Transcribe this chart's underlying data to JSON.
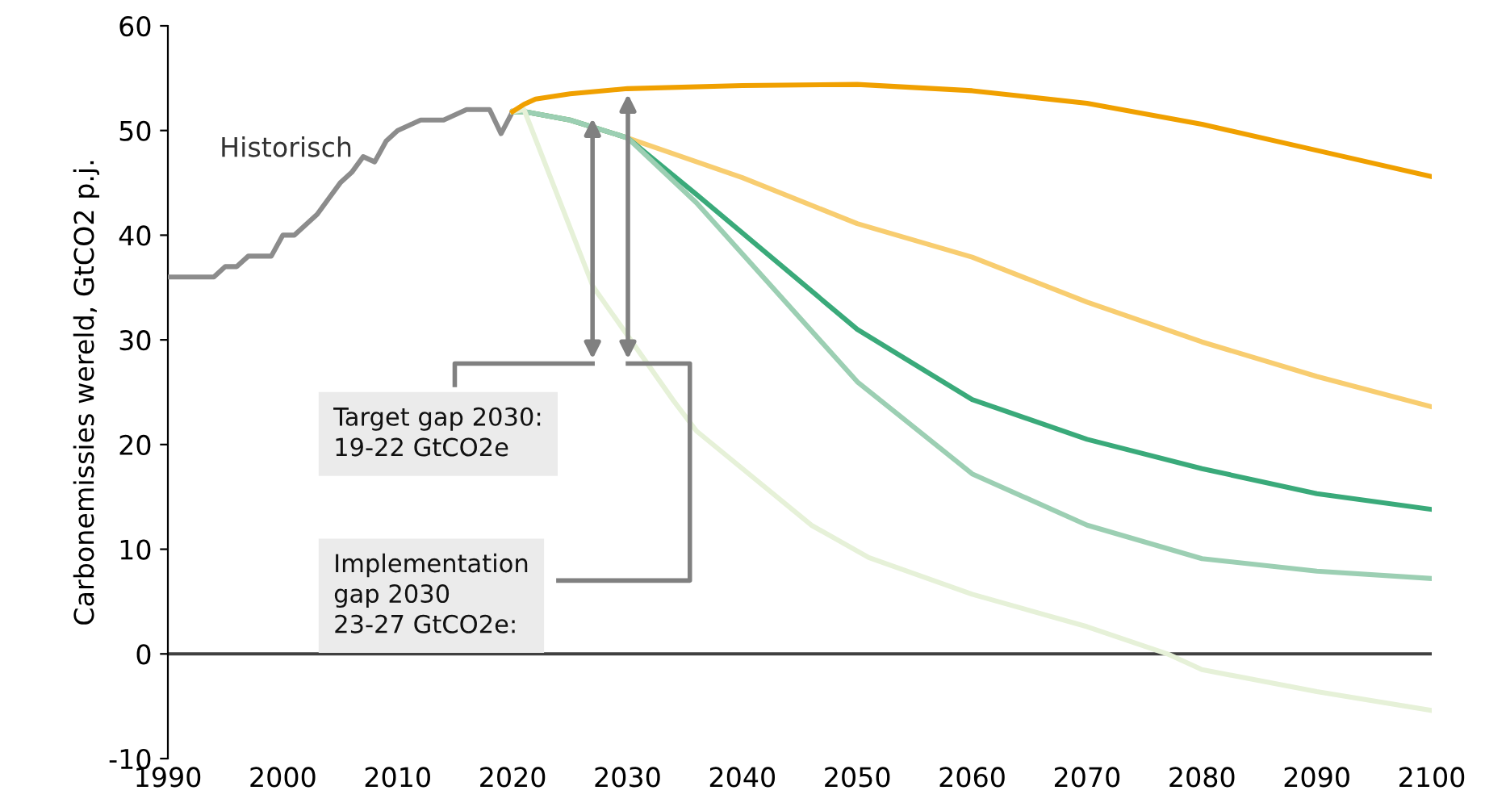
{
  "chart_data": {
    "type": "line",
    "ylabel": "Carbonemissies wereld, GtCO2 p.j.",
    "xlim": [
      1990,
      2100
    ],
    "xticks": [
      1990,
      2000,
      2010,
      2020,
      2030,
      2040,
      2050,
      2060,
      2070,
      2080,
      2090,
      2100
    ],
    "ylim": [
      -10,
      60
    ],
    "yticks": [
      -10,
      0,
      10,
      20,
      30,
      40,
      50,
      60
    ],
    "grid": false,
    "legend": false,
    "marker": "none",
    "line_style": "solid",
    "ref_lines": [
      {
        "axis": "y",
        "value": 0,
        "color": "#404040"
      }
    ],
    "annotations": [
      "Target gap 2030:\n19-22 GtCO2e",
      "Implementation\ngap 2030\n23-27 GtCO2e:"
    ],
    "series": [
      {
        "name": "Historisch",
        "color": "#8c8c8c",
        "x": [
          1990,
          1994,
          1995,
          1996,
          1997,
          1999,
          2000,
          2001,
          2002,
          2003,
          2004,
          2005,
          2006,
          2007,
          2008,
          2009,
          2010,
          2011,
          2012,
          2013,
          2014,
          2015,
          2016,
          2017,
          2018,
          2019,
          2020
        ],
        "values": [
          36,
          36,
          37,
          37,
          38,
          38,
          40,
          40,
          41,
          42,
          43.5,
          45,
          46,
          47.5,
          47,
          49,
          50,
          50.5,
          51,
          51,
          51,
          51.5,
          52,
          52,
          52,
          49.7,
          51.8
        ]
      },
      {
        "color": "#f0a000",
        "x": [
          2020,
          2021,
          2022,
          2025,
          2030,
          2040,
          2050,
          2060,
          2070,
          2080,
          2090,
          2100
        ],
        "values": [
          51.8,
          52.5,
          53,
          53.5,
          54,
          54.3,
          54.4,
          53.8,
          52.6,
          50.6,
          48.1,
          45.6
        ]
      },
      {
        "color": "#f8cd70",
        "x": [
          2020,
          2021,
          2025,
          2030,
          2040,
          2050,
          2060,
          2070,
          2080,
          2090,
          2100
        ],
        "values": [
          51.8,
          51.8,
          51,
          49.3,
          45.5,
          41.1,
          37.9,
          33.6,
          29.8,
          26.5,
          23.6
        ]
      },
      {
        "color": "#3aaa7a",
        "x": [
          2020,
          2021,
          2025,
          2030,
          2036,
          2050,
          2060,
          2070,
          2080,
          2090,
          2100
        ],
        "values": [
          51.8,
          51.8,
          51,
          49.3,
          43.9,
          31,
          24.3,
          20.5,
          17.7,
          15.3,
          13.8
        ]
      },
      {
        "color": "#9ccfb3",
        "x": [
          2020,
          2021,
          2025,
          2030,
          2036,
          2050,
          2060,
          2070,
          2080,
          2090,
          2100
        ],
        "values": [
          51.8,
          51.8,
          51,
          49.3,
          43.1,
          26,
          17.2,
          12.3,
          9.1,
          7.9,
          7.2
        ]
      },
      {
        "color": "#e6f1d8",
        "x": [
          2020,
          2021,
          2027,
          2034,
          2036,
          2046,
          2051,
          2060,
          2070,
          2077,
          2080,
          2090,
          2100
        ],
        "values": [
          51.8,
          52,
          35.1,
          24.2,
          21.3,
          12.3,
          9.2,
          5.7,
          2.6,
          0,
          -1.5,
          -3.6,
          -5.4
        ]
      }
    ]
  }
}
